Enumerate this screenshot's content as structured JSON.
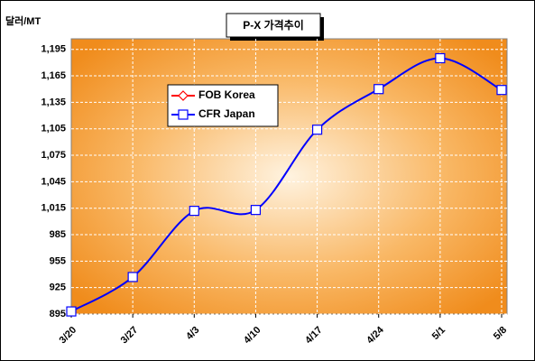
{
  "chart_data": {
    "type": "line",
    "title": "P-X 가격추이",
    "y_axis_label": "달러/MT",
    "categories": [
      "3/20",
      "3/27",
      "4/3",
      "4/10",
      "4/17",
      "4/24",
      "5/1",
      "5/8"
    ],
    "series": [
      {
        "name": "FOB Korea",
        "color": "#ff0000",
        "marker": "diamond",
        "values": [
          null,
          null,
          null,
          null,
          null,
          null,
          null,
          null
        ]
      },
      {
        "name": "CFR Japan",
        "color": "#0000ff",
        "marker": "square",
        "values": [
          898,
          937,
          1012,
          1013,
          1104,
          1150,
          1185,
          1149
        ]
      }
    ],
    "ylim": [
      895,
      1207
    ],
    "yticks": [
      895,
      925,
      955,
      985,
      {
        "value": 1015,
        "label": "1,015"
      },
      {
        "value": 1045,
        "label": "1,045"
      },
      {
        "value": 1075,
        "label": "1,075"
      },
      {
        "value": 1105,
        "label": "1,105"
      },
      {
        "value": 1135,
        "label": "1,135"
      },
      {
        "value": 1165,
        "label": "1,165"
      },
      {
        "value": 1195,
        "label": "1,195"
      }
    ],
    "grid": true,
    "smooth": true,
    "legend": "upper left"
  }
}
